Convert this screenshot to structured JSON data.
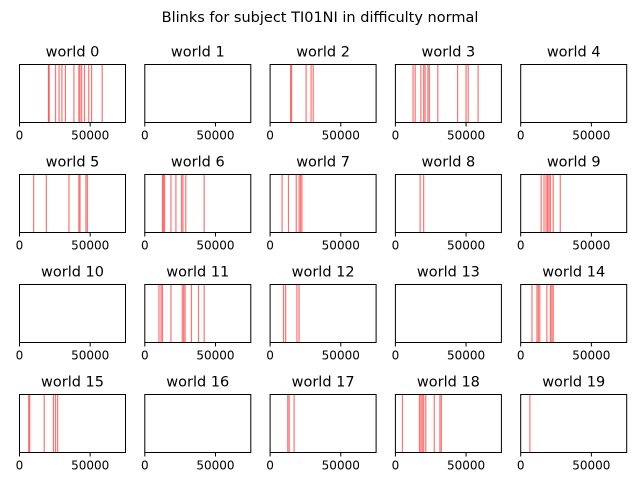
{
  "chart_data": {
    "type": "event-raster",
    "title": "Blinks for subject TI01NI in difficulty normal",
    "xlim": [
      0,
      75000
    ],
    "xticks": [
      0,
      50000
    ],
    "xtick_labels": [
      "0",
      "50000"
    ],
    "color": "#ff0000",
    "subplots": [
      {
        "title": "world 0",
        "events": [
          20500,
          21000,
          25500,
          28000,
          30000,
          32500,
          38500,
          42000,
          42800,
          44000,
          46000,
          49000,
          51000,
          58500
        ]
      },
      {
        "title": "world 1",
        "events": []
      },
      {
        "title": "world 2",
        "events": [
          14500,
          15200,
          25500,
          29000,
          30500
        ]
      },
      {
        "title": "world 3",
        "events": [
          12500,
          14000,
          18000,
          20000,
          21000,
          23000,
          24000,
          30000,
          44000,
          50000,
          51500,
          58500
        ]
      },
      {
        "title": "world 4",
        "events": []
      },
      {
        "title": "world 5",
        "events": [
          10000,
          19000,
          35000,
          42000,
          42800,
          47000,
          48000
        ]
      },
      {
        "title": "world 6",
        "events": [
          12500,
          13200,
          14000,
          18500,
          22000,
          26000,
          27000,
          29000,
          42000
        ]
      },
      {
        "title": "world 7",
        "events": [
          8500,
          13000,
          18500,
          20500,
          21500,
          22500
        ]
      },
      {
        "title": "world 8",
        "events": [
          17500,
          20000
        ]
      },
      {
        "title": "world 9",
        "events": [
          14500,
          16500,
          18000,
          19000,
          20000,
          21000,
          23000,
          28000
        ]
      },
      {
        "title": "world 10",
        "events": []
      },
      {
        "title": "world 11",
        "events": [
          10000,
          11500,
          12500,
          18500,
          26500,
          27500,
          28500,
          33000,
          38000,
          42000
        ]
      },
      {
        "title": "world 12",
        "events": [
          9500,
          11000,
          19000,
          20500
        ]
      },
      {
        "title": "world 13",
        "events": []
      },
      {
        "title": "world 14",
        "events": [
          8000,
          11500,
          12500,
          13500,
          18500,
          21000,
          22000,
          23000
        ]
      },
      {
        "title": "world 15",
        "events": [
          6500,
          7200,
          17500,
          24000,
          25500,
          27000
        ]
      },
      {
        "title": "world 16",
        "events": []
      },
      {
        "title": "world 17",
        "events": [
          12500,
          13500,
          17000
        ]
      },
      {
        "title": "world 18",
        "events": [
          5000,
          17000,
          18000,
          19000,
          20000,
          21500,
          27500,
          31500,
          32500
        ]
      },
      {
        "title": "world 19",
        "events": [
          6500
        ]
      }
    ]
  }
}
